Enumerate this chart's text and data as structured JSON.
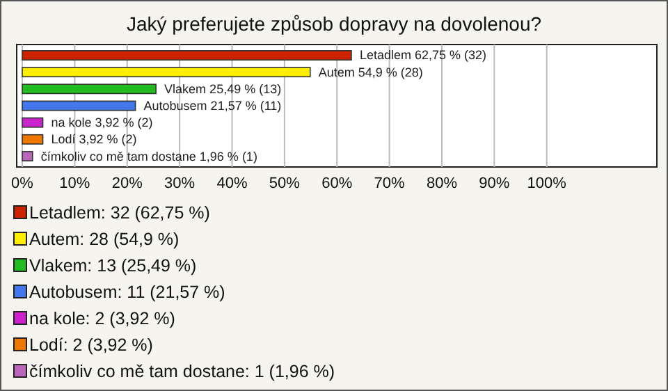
{
  "chart_data": {
    "type": "bar",
    "orientation": "horizontal",
    "title": "Jaký preferujete způsob dopravy na dovolenou?",
    "categories": [
      null,
      null,
      null,
      null,
      null,
      null,
      null
    ],
    "values": [
      62.75,
      54.9,
      25.49,
      21.57,
      3.92,
      3.92,
      1.96
    ],
    "colors": [
      "#cc2200",
      "#ffee00",
      "#22bb22",
      "#4477ee",
      "#cc22cc",
      "#ee7700",
      "#bb66bb"
    ],
    "value_labels": [
      "Letadlem 62,75 % (32)",
      "Autem 54,9 % (28)",
      "Vlakem 25,49 % (13)",
      "Autobusem 21,57 % (11)",
      "na kole 3,92 % (2)",
      "Lodí 3,92 % (2)",
      "čímkoliv co mě tam dostane 1,96 % (1)"
    ],
    "xlim": [
      0,
      121
    ],
    "xticks": [
      {
        "value": 0,
        "label": "0%"
      },
      {
        "value": 10,
        "label": "10%"
      },
      {
        "value": 20,
        "label": "20%"
      },
      {
        "value": 30,
        "label": "30%"
      },
      {
        "value": 40,
        "label": "40%"
      },
      {
        "value": 50,
        "label": "50%"
      },
      {
        "value": 60,
        "label": "60%"
      },
      {
        "value": 70,
        "label": "70%"
      },
      {
        "value": 80,
        "label": "80%"
      },
      {
        "value": 90,
        "label": "90%"
      },
      {
        "value": 100,
        "label": "100%"
      }
    ],
    "grid": "x",
    "annotations": [
      "Letadlem: 32 (62,75 %)",
      "Autem: 28 (54,9 %)",
      "Vlakem: 13 (25,49 %)",
      "Autobusem: 11 (21,57 %)",
      "na kole: 2 (3,92 %)",
      "Lodí: 2 (3,92 %)",
      "čímkoliv co mě tam dostane: 1 (1,96 %)"
    ]
  }
}
